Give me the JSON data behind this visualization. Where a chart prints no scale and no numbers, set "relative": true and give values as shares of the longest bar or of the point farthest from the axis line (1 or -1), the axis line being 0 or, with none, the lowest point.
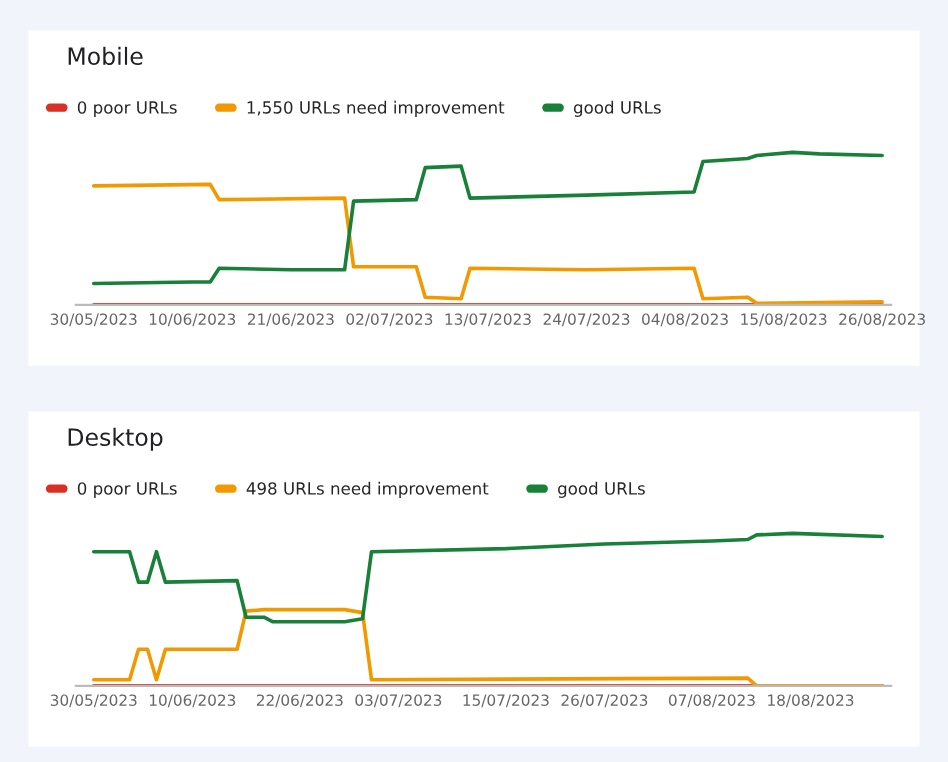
{
  "chart_data": [
    {
      "type": "line",
      "title": "Mobile",
      "relative": true,
      "legend": "top left",
      "marker": "none",
      "line_style": "solid",
      "xlim": [
        "2023-05-28",
        "2023-08-27"
      ],
      "xticks": [
        {
          "value": "2023-05-30",
          "label": "30/05/2023"
        },
        {
          "value": "2023-06-10",
          "label": "10/06/2023"
        },
        {
          "value": "2023-06-21",
          "label": "21/06/2023"
        },
        {
          "value": "2023-07-02",
          "label": "02/07/2023"
        },
        {
          "value": "2023-07-13",
          "label": "13/07/2023"
        },
        {
          "value": "2023-07-24",
          "label": "24/07/2023"
        },
        {
          "value": "2023-08-04",
          "label": "04/08/2023"
        },
        {
          "value": "2023-08-15",
          "label": "15/08/2023"
        },
        {
          "value": "2023-08-26",
          "label": "26/08/2023"
        }
      ],
      "series": [
        {
          "name": "0 poor URLs",
          "color": "#d93025",
          "x": [
            "2023-05-30",
            "2023-08-26"
          ],
          "values": [
            0,
            0
          ]
        },
        {
          "name": "1,550 URLs need improvement",
          "color": "#f29900",
          "x": [
            "2023-05-30",
            "2023-06-12",
            "2023-06-13",
            "2023-06-27",
            "2023-06-28",
            "2023-07-05",
            "2023-07-06",
            "2023-07-10",
            "2023-07-11",
            "2023-07-24",
            "2023-08-05",
            "2023-08-06",
            "2023-08-11",
            "2023-08-12",
            "2023-08-26"
          ],
          "values": [
            0.78,
            0.79,
            0.69,
            0.7,
            0.25,
            0.25,
            0.05,
            0.04,
            0.24,
            0.23,
            0.24,
            0.04,
            0.05,
            0.01,
            0.02
          ]
        },
        {
          "name": "good URLs",
          "color": "#188038",
          "x": [
            "2023-05-30",
            "2023-06-10",
            "2023-06-12",
            "2023-06-13",
            "2023-06-21",
            "2023-06-27",
            "2023-06-28",
            "2023-07-05",
            "2023-07-06",
            "2023-07-10",
            "2023-07-11",
            "2023-07-24",
            "2023-08-05",
            "2023-08-06",
            "2023-08-11",
            "2023-08-12",
            "2023-08-16",
            "2023-08-19",
            "2023-08-26"
          ],
          "values": [
            0.14,
            0.15,
            0.15,
            0.24,
            0.23,
            0.23,
            0.68,
            0.69,
            0.9,
            0.91,
            0.7,
            0.72,
            0.74,
            0.94,
            0.96,
            0.98,
            1.0,
            0.99,
            0.98
          ]
        }
      ]
    },
    {
      "type": "line",
      "title": "Desktop",
      "relative": true,
      "legend": "top left",
      "marker": "none",
      "line_style": "solid",
      "xlim": [
        "2023-05-28",
        "2023-08-27"
      ],
      "xticks": [
        {
          "value": "2023-05-30",
          "label": "30/05/2023"
        },
        {
          "value": "2023-06-10",
          "label": "10/06/2023"
        },
        {
          "value": "2023-06-22",
          "label": "22/06/2023"
        },
        {
          "value": "2023-07-03",
          "label": "03/07/2023"
        },
        {
          "value": "2023-07-15",
          "label": "15/07/2023"
        },
        {
          "value": "2023-07-26",
          "label": "26/07/2023"
        },
        {
          "value": "2023-08-07",
          "label": "07/08/2023"
        },
        {
          "value": "2023-08-18",
          "label": "18/08/2023"
        }
      ],
      "series": [
        {
          "name": "0 poor URLs",
          "color": "#d93025",
          "x": [
            "2023-05-30",
            "2023-08-26"
          ],
          "values": [
            0,
            0
          ]
        },
        {
          "name": "498 URLs need improvement",
          "color": "#f29900",
          "x": [
            "2023-05-30",
            "2023-06-03",
            "2023-06-04",
            "2023-06-05",
            "2023-06-06",
            "2023-06-07",
            "2023-06-15",
            "2023-06-16",
            "2023-06-18",
            "2023-06-27",
            "2023-06-29",
            "2023-06-30",
            "2023-08-11",
            "2023-08-12",
            "2023-08-26"
          ],
          "values": [
            0.04,
            0.04,
            0.24,
            0.24,
            0.04,
            0.24,
            0.24,
            0.49,
            0.5,
            0.5,
            0.48,
            0.04,
            0.05,
            0.0,
            0.0
          ]
        },
        {
          "name": "good URLs",
          "color": "#188038",
          "x": [
            "2023-05-30",
            "2023-06-03",
            "2023-06-04",
            "2023-06-05",
            "2023-06-06",
            "2023-06-07",
            "2023-06-15",
            "2023-06-16",
            "2023-06-18",
            "2023-06-19",
            "2023-06-27",
            "2023-06-29",
            "2023-06-30",
            "2023-07-15",
            "2023-07-26",
            "2023-08-07",
            "2023-08-11",
            "2023-08-12",
            "2023-08-16",
            "2023-08-26"
          ],
          "values": [
            0.88,
            0.88,
            0.68,
            0.68,
            0.88,
            0.68,
            0.69,
            0.45,
            0.45,
            0.42,
            0.42,
            0.44,
            0.88,
            0.9,
            0.93,
            0.95,
            0.96,
            0.99,
            1.0,
            0.98
          ]
        }
      ]
    }
  ]
}
